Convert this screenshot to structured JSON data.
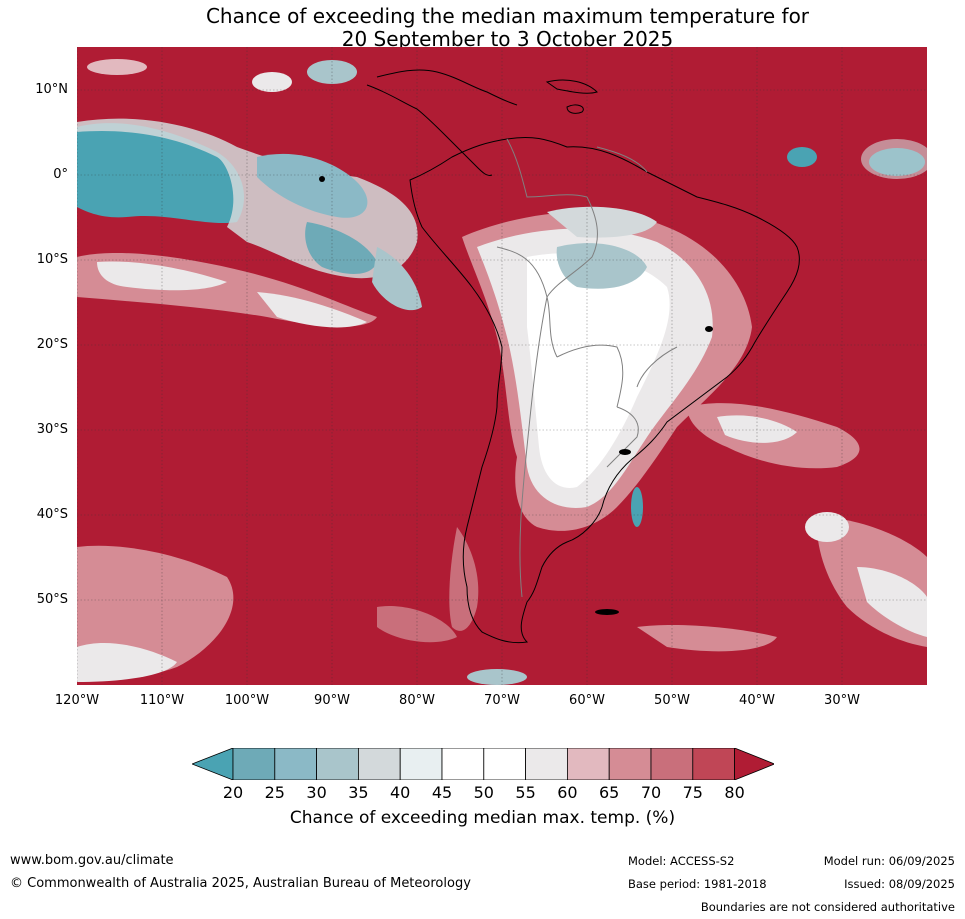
{
  "title": {
    "line1": "Chance of exceeding the median maximum temperature for",
    "line2": "20 September to 3 October 2025"
  },
  "map": {
    "lat_labels": [
      "10°N",
      "0°",
      "10°S",
      "20°S",
      "30°S",
      "40°S",
      "50°S"
    ],
    "lon_labels": [
      "120°W",
      "110°W",
      "100°W",
      "90°W",
      "80°W",
      "70°W",
      "60°W",
      "50°W",
      "40°W",
      "30°W"
    ],
    "colors": {
      "above80": "#b01c34",
      "ocean_dominant": "#b01c34",
      "land_outline": "#000000",
      "border_outline": "#808080"
    }
  },
  "colorbar": {
    "ticks": [
      "20",
      "25",
      "30",
      "35",
      "40",
      "45",
      "50",
      "55",
      "60",
      "65",
      "70",
      "75",
      "80"
    ],
    "colors": [
      "#4aa3b3",
      "#6eaab7",
      "#8bb9c6",
      "#a9c5cb",
      "#d3d9db",
      "#e8eff1",
      "#ffffff",
      "#ffffff",
      "#ebe9ea",
      "#e2b9bf",
      "#d58c95",
      "#c96f7b",
      "#c04656",
      "#b01c34"
    ],
    "label": "Chance of exceeding median max. temp. (%)"
  },
  "footer": {
    "website": "www.bom.gov.au/climate",
    "copyright": "© Commonwealth of Australia 2025, Australian Bureau of Meteorology",
    "model": "Model: ACCESS-S2",
    "base_period": "Base period: 1981-2018",
    "model_run": "Model run: 06/09/2025",
    "issued": "Issued: 08/09/2025",
    "disclaimer": "Boundaries are not considered authoritative"
  }
}
